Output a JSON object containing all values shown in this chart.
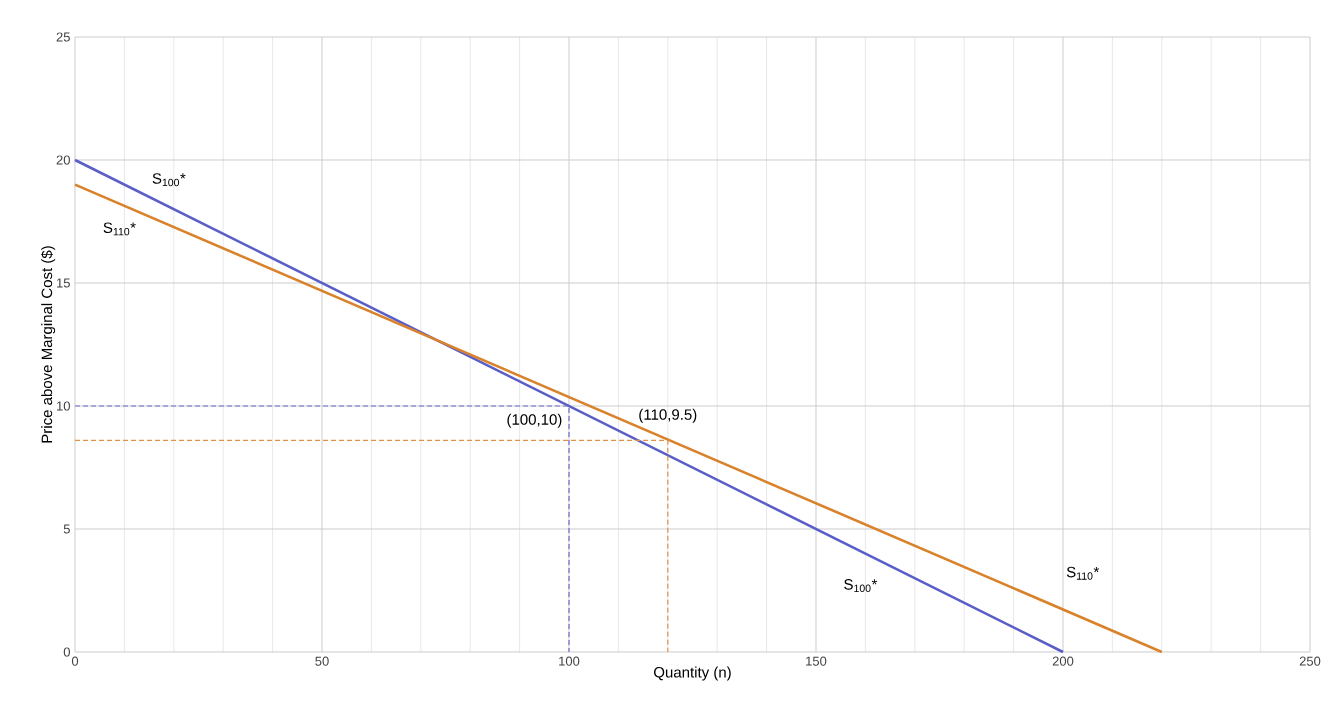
{
  "chart_data": {
    "type": "line",
    "xlabel": "Quantity (n)",
    "ylabel": "Price above Marginal Cost ($)",
    "xlim": [
      0,
      250
    ],
    "ylim": [
      0,
      25
    ],
    "xticks": [
      0,
      50,
      100,
      150,
      200,
      250
    ],
    "yticks": [
      0,
      5,
      10,
      15,
      20,
      25
    ],
    "grid": true,
    "marker": "none",
    "series": [
      {
        "color": "#5a5fc8",
        "x": [
          0,
          200
        ],
        "values": [
          20,
          0
        ],
        "line_style": "solid"
      },
      {
        "color": "#d9822b",
        "x": [
          0,
          220
        ],
        "values": [
          19,
          0
        ],
        "line_style": "solid"
      },
      {
        "color": "#6a6fd0",
        "x": [
          0,
          100,
          100
        ],
        "values": [
          10,
          10,
          0
        ],
        "line_style": "dashed"
      },
      {
        "color": "#e0924a",
        "x": [
          0,
          120,
          120
        ],
        "values": [
          8.6,
          8.6,
          0
        ],
        "line_style": "dashed"
      }
    ],
    "annotations": [
      "S$_{100}$*",
      "S$_{110}$*",
      "S$_{100}$*",
      "S$_{110}$*",
      "(100,10)",
      "(110,9.5)"
    ]
  }
}
